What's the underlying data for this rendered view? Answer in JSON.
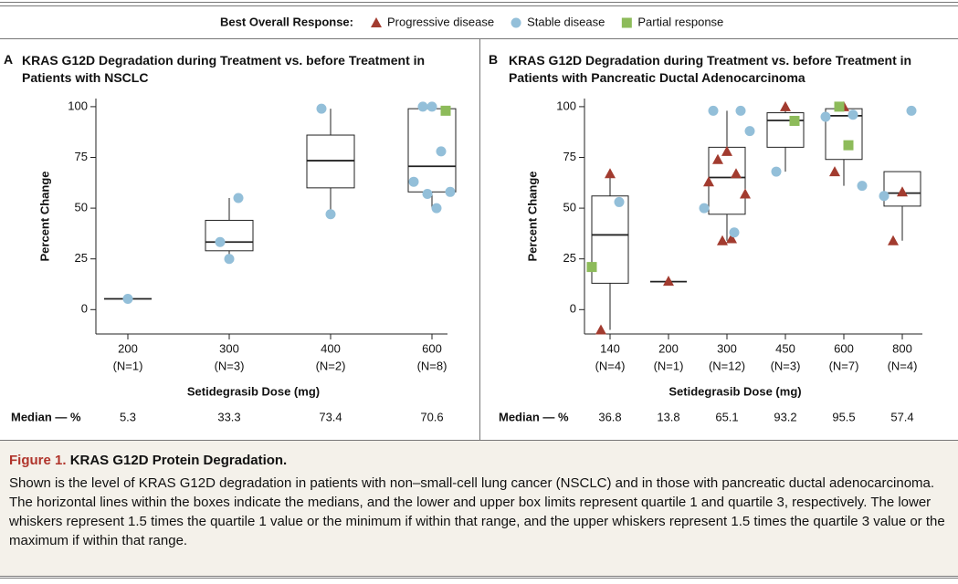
{
  "legend": {
    "title": "Best Overall Response:",
    "series": [
      {
        "name": "Progressive disease",
        "color": "#a23b2f",
        "marker": "triangle"
      },
      {
        "name": "Stable disease",
        "color": "#93bfd9",
        "marker": "circle"
      },
      {
        "name": "Partial response",
        "color": "#8dbb5a",
        "marker": "square"
      }
    ]
  },
  "chart_data": [
    {
      "type": "box",
      "panel": "A",
      "title": "KRAS G12D Degradation during Treatment vs. before Treatment in Patients with NSCLC",
      "x_label": "Setidegrasib Dose (mg)",
      "y_label": "Percent Change",
      "categories": [
        "200",
        "300",
        "400",
        "600"
      ],
      "n_labels": [
        "(N=1)",
        "(N=3)",
        "(N=2)",
        "(N=8)"
      ],
      "whisker_low": [
        5.3,
        25,
        47,
        50
      ],
      "q1": [
        5.3,
        29,
        60,
        58
      ],
      "median": [
        5.3,
        33.3,
        73.4,
        70.6
      ],
      "q3": [
        5.3,
        44,
        86,
        99
      ],
      "whisker_high": [
        5.3,
        55,
        99,
        100
      ],
      "median_label": "Median — %",
      "ylim": [
        -12,
        104
      ],
      "yticks": [
        0,
        25,
        50,
        75,
        100
      ],
      "points": [
        {
          "x": [],
          "values": []
        },
        {
          "x": [
            "200",
            "300",
            "300",
            "300",
            "400",
            "400",
            "600",
            "600",
            "600",
            "600",
            "600",
            "600",
            "600"
          ],
          "values": [
            5.3,
            25,
            33.3,
            55,
            47,
            99,
            100,
            100,
            78,
            63,
            58,
            57,
            50
          ]
        },
        {
          "x": [
            "600"
          ],
          "values": [
            98
          ]
        }
      ]
    },
    {
      "type": "box",
      "panel": "B",
      "title": "KRAS G12D Degradation during Treatment vs. before Treatment in Patients with Pancreatic Ductal Adenocarcinoma",
      "x_label": "Setidegrasib Dose (mg)",
      "y_label": "Percent Change",
      "categories": [
        "140",
        "200",
        "300",
        "450",
        "600",
        "800"
      ],
      "n_labels": [
        "(N=4)",
        "(N=1)",
        "(N=12)",
        "(N=3)",
        "(N=7)",
        "(N=4)"
      ],
      "whisker_low": [
        -10,
        13.8,
        34,
        68,
        61,
        34
      ],
      "q1": [
        13,
        13.8,
        47,
        80,
        74,
        51
      ],
      "median": [
        36.8,
        13.8,
        65.1,
        93.2,
        95.5,
        57.4
      ],
      "q3": [
        56,
        13.8,
        80,
        97,
        99,
        68
      ],
      "whisker_high": [
        67,
        13.8,
        98,
        100,
        100,
        68
      ],
      "median_label": "Median — %",
      "ylim": [
        -12,
        104
      ],
      "yticks": [
        0,
        25,
        50,
        75,
        100
      ],
      "points": [
        {
          "x": [
            "140",
            "140",
            "200",
            "300",
            "300",
            "300",
            "300",
            "300",
            "300",
            "300",
            "450",
            "600",
            "600",
            "800",
            "800"
          ],
          "values": [
            67,
            -10,
            14,
            78,
            74,
            67,
            63,
            57,
            34,
            35,
            100,
            100,
            68,
            58,
            34
          ]
        },
        {
          "x": [
            "140",
            "300",
            "300",
            "300",
            "300",
            "300",
            "450",
            "600",
            "600",
            "600",
            "800",
            "800"
          ],
          "values": [
            53,
            98,
            98,
            88,
            50,
            38,
            68,
            96,
            95,
            61,
            98,
            56
          ]
        },
        {
          "x": [
            "140",
            "450",
            "600",
            "600"
          ],
          "values": [
            21,
            93,
            100,
            81
          ]
        }
      ]
    }
  ],
  "caption": {
    "label": "Figure 1.",
    "title": "KRAS G12D Protein Degradation.",
    "text": "Shown is the level of KRAS G12D degradation in patients with non–small-cell lung cancer (NSCLC) and in those with pancreatic ductal adenocarcinoma. The horizontal lines within the boxes indicate the medians, and the lower and upper box limits represent quartile 1 and quartile 3, respectively. The lower whiskers represent 1.5 times the quartile 1 value or the minimum if within that range, and the upper whiskers represent 1.5 times the quartile 3 value or the maximum if within that range."
  }
}
